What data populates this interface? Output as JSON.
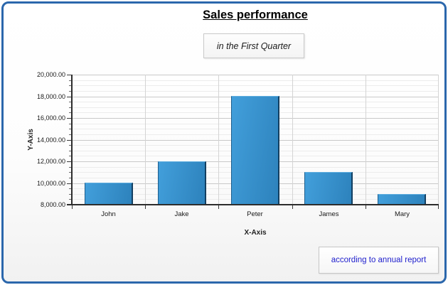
{
  "page": {
    "border_color": "#2b67ac"
  },
  "chart_data": {
    "type": "bar",
    "title": "Sales performance",
    "subtitle": "in the First Quarter",
    "annotation": "according to annual report",
    "categories": [
      "John",
      "Jake",
      "Peter",
      "James",
      "Mary"
    ],
    "values": [
      10000,
      12000,
      18000,
      11000,
      9000
    ],
    "xlabel": "X-Axis",
    "ylabel": "Y-Axis",
    "ylim": [
      8000,
      20000
    ],
    "y_major_step": 2000,
    "y_minor_step": 500,
    "y_tick_labels": [
      "20,000.00",
      "18,000.00",
      "16,000.00",
      "14,000.00",
      "12,000.00",
      "10,000.00",
      "8,000.00"
    ],
    "legend": "none",
    "grid": true,
    "colors": {
      "bar_top": "#429fdb",
      "bar_bottom": "#2d82bc",
      "bar_border": "#1c5d8c",
      "bar_edge_dark": "#123f61",
      "annotation_text": "#2121cd"
    }
  }
}
